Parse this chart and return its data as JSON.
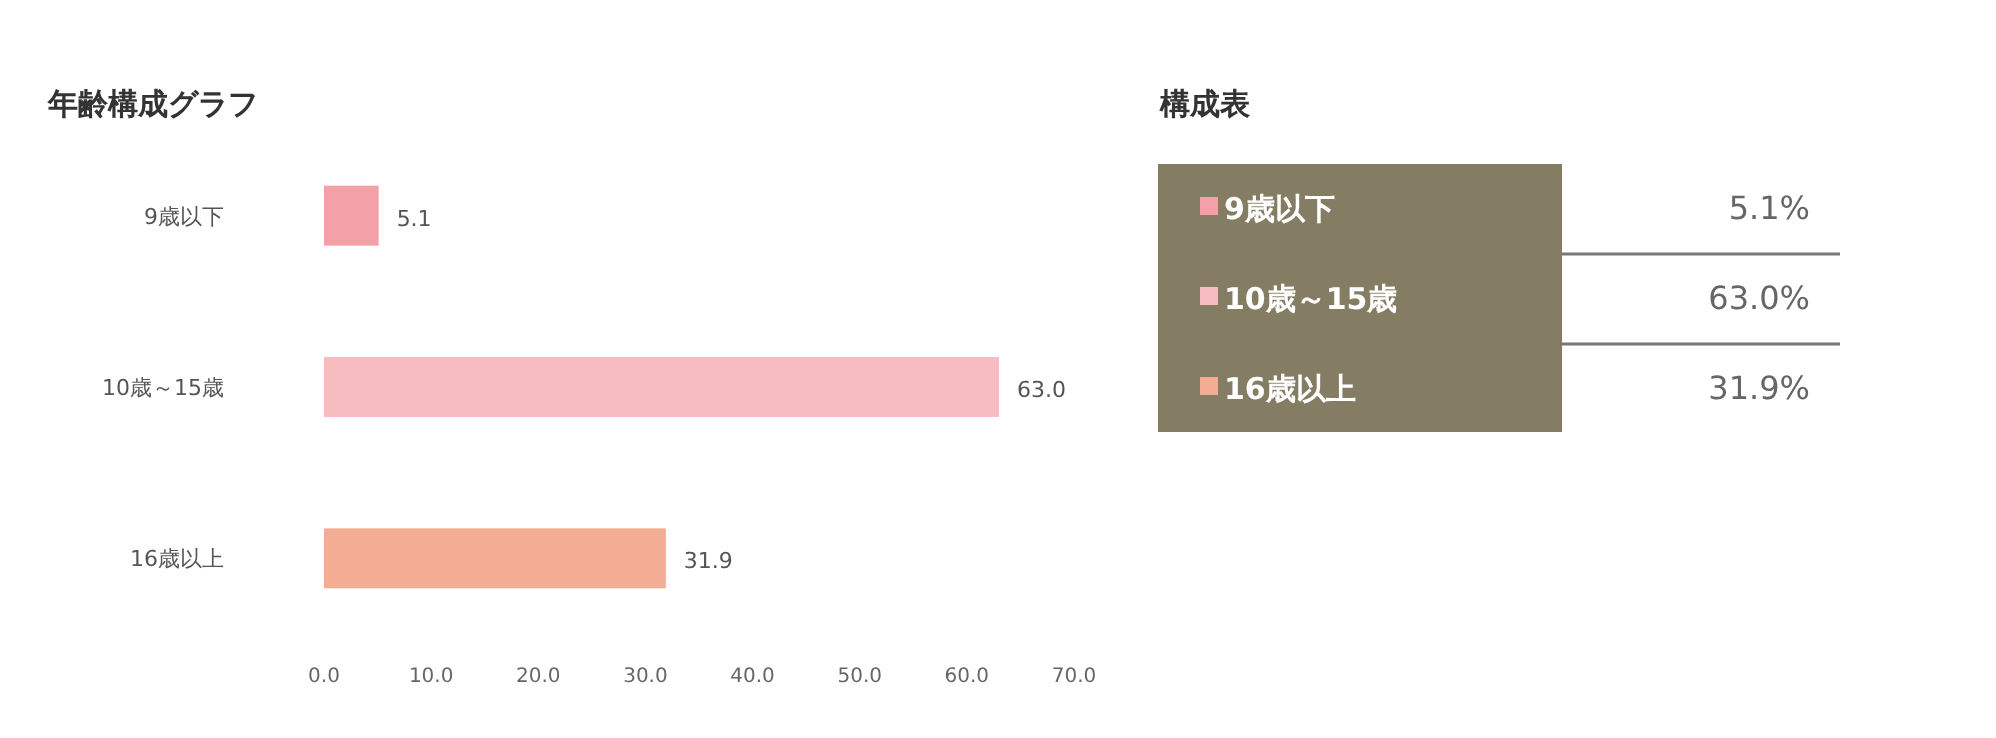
{
  "chart_data": [
    {
      "type": "bar",
      "orientation": "horizontal",
      "title": "年齢構成グラフ",
      "categories": [
        "9歳以下",
        "10歳～15歳",
        "16歳以上"
      ],
      "values": [
        5.1,
        63.0,
        31.9
      ],
      "colors": [
        "#f4a0a8",
        "#f6bcc0",
        "#f2ad94"
      ],
      "value_labels": [
        "5.1",
        "63.0",
        "31.9"
      ],
      "xlim": [
        0,
        70
      ],
      "xticks": [
        {
          "value": 0,
          "label": "0.0"
        },
        {
          "value": 10,
          "label": "10.0"
        },
        {
          "value": 20,
          "label": "20.0"
        },
        {
          "value": 30,
          "label": "30.0"
        },
        {
          "value": 40,
          "label": "40.0"
        },
        {
          "value": 50,
          "label": "50.0"
        },
        {
          "value": 60,
          "label": "60.0"
        },
        {
          "value": 70,
          "label": "70.0"
        }
      ],
      "grid": false
    },
    {
      "type": "other",
      "title": "構成表",
      "categories": [
        "9歳以下",
        "10歳～15歳",
        "16歳以上"
      ],
      "value_labels": [
        "5.1%",
        "63.0%",
        "31.9%"
      ],
      "colors": [
        "#f4a0a8",
        "#f6bcc0",
        "#f2ad94"
      ],
      "color": "#857c64"
    }
  ]
}
